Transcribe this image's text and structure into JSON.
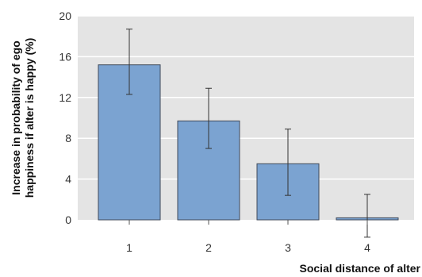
{
  "chart_data": {
    "type": "bar",
    "title": "",
    "xlabel": "Social distance of alter",
    "ylabel_lines": [
      "Increase in probability of ego",
      "happiness if alter is happy (%)"
    ],
    "categories": [
      "1",
      "2",
      "3",
      "4"
    ],
    "values": [
      15.2,
      9.7,
      5.5,
      0.2
    ],
    "error_low": [
      12.3,
      7.0,
      2.4,
      -1.7
    ],
    "error_high": [
      18.7,
      12.9,
      8.9,
      2.5
    ],
    "ylim": [
      0,
      20
    ],
    "yticks": [
      0,
      4,
      8,
      12,
      16,
      20
    ],
    "grid": true,
    "colors": {
      "plot_background": "#e4e4e4",
      "bar_fill": "#7ba3d1",
      "bar_stroke": "#3f4a5a",
      "grid": "#ffffff",
      "error_bar": "#333333"
    }
  }
}
